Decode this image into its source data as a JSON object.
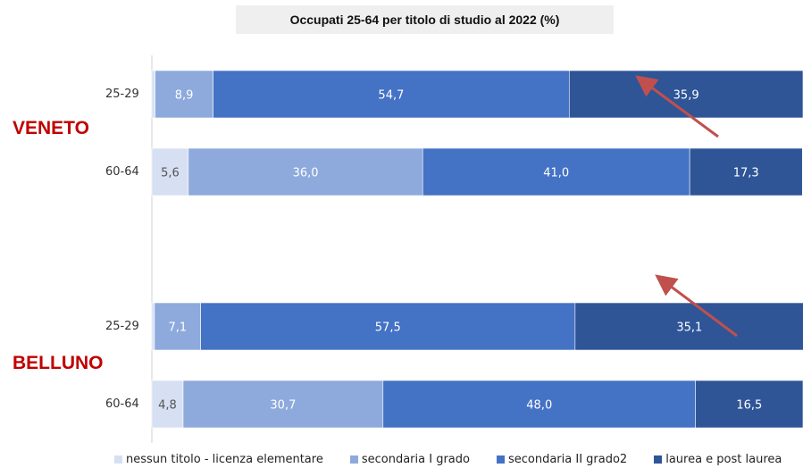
{
  "title": "Occupati 25-64 per titolo di studio al 2022 (%)",
  "regions": [
    {
      "name": "VENETO"
    },
    {
      "name": "BELLUNO"
    }
  ],
  "colors": {
    "nessun": "#d6e0f2",
    "sec1": "#8eaadc",
    "sec2": "#4472c4",
    "laurea": "#2f5597",
    "arrow": "#c0504d",
    "region_text": "#c00000"
  },
  "legend": [
    {
      "label": "nessun titolo - licenza elementare",
      "color": "#d6e0f2"
    },
    {
      "label": "secondaria I grado",
      "color": "#8eaadc"
    },
    {
      "label": "secondaria II grado2",
      "color": "#4472c4"
    },
    {
      "label": "laurea e post laurea",
      "color": "#2f5597"
    }
  ],
  "chart_data": {
    "type": "bar",
    "orientation": "horizontal",
    "stacked": true,
    "percent_stacked": true,
    "categories": [
      "25-29",
      "60-64",
      "25-29",
      "60-64"
    ],
    "groups": [
      "VENETO",
      "VENETO",
      "BELLUNO",
      "BELLUNO"
    ],
    "series": [
      {
        "name": "nessun titolo - licenza elementare",
        "values": [
          0.5,
          5.6,
          0.4,
          4.8
        ]
      },
      {
        "name": "secondaria I grado",
        "values": [
          8.9,
          36.0,
          7.1,
          30.7
        ]
      },
      {
        "name": "secondaria II grado2",
        "values": [
          54.7,
          41.0,
          57.5,
          48.0
        ]
      },
      {
        "name": "laurea e post laurea",
        "values": [
          35.9,
          17.3,
          35.1,
          16.5
        ]
      }
    ],
    "value_labels": [
      [
        "0,5",
        "5,6",
        "0,4",
        "4,8"
      ],
      [
        "8,9",
        "36,0",
        "7,1",
        "30,7"
      ],
      [
        "54,7",
        "41,0",
        "57,5",
        "48,0"
      ],
      [
        "35,9",
        "17,3",
        "35,1",
        "16,5"
      ]
    ],
    "title": "Occupati 25-64 per titolo di studio al 2022 (%)",
    "xlabel": "",
    "ylabel": "",
    "xlim": [
      0,
      100
    ],
    "grid": false,
    "legend_position": "bottom"
  }
}
